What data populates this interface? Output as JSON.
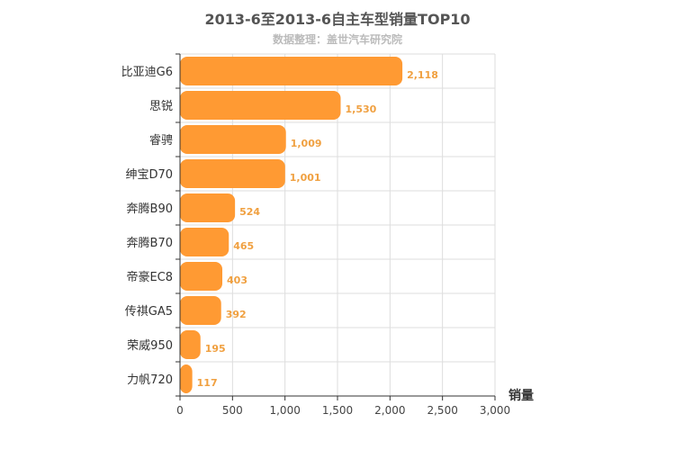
{
  "chart_data": {
    "type": "bar",
    "orientation": "horizontal",
    "title": "2013-6至2013-6自主车型销量TOP10",
    "subtitle": "数据整理：盖世汽车研究院",
    "xlabel": "销量",
    "ylabel": "",
    "categories": [
      "比亚迪G6",
      "思锐",
      "睿骋",
      "绅宝D70",
      "奔腾B90",
      "奔腾B70",
      "帝豪EC8",
      "传祺GA5",
      "荣威950",
      "力帆720"
    ],
    "values": [
      2118,
      1530,
      1009,
      1001,
      524,
      465,
      403,
      392,
      195,
      117
    ],
    "value_labels": [
      "2,118",
      "1,530",
      "1,009",
      "1,001",
      "524",
      "465",
      "403",
      "392",
      "195",
      "117"
    ],
    "xlim": [
      0,
      3000
    ],
    "xticks": [
      0,
      500,
      1000,
      1500,
      2000,
      2500,
      3000
    ],
    "xtick_labels": [
      "0",
      "500",
      "1,000",
      "1,500",
      "2,000",
      "2,500",
      "3,000"
    ],
    "grid": true,
    "bar_color": "#ff9a33",
    "label_color": "#f0a040"
  }
}
